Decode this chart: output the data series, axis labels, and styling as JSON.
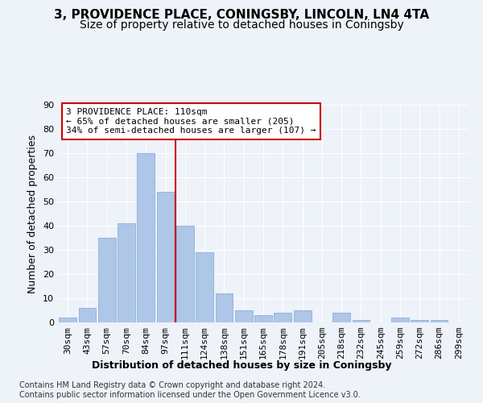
{
  "title1": "3, PROVIDENCE PLACE, CONINGSBY, LINCOLN, LN4 4TA",
  "title2": "Size of property relative to detached houses in Coningsby",
  "xlabel": "Distribution of detached houses by size in Coningsby",
  "ylabel": "Number of detached properties",
  "categories": [
    "30sqm",
    "43sqm",
    "57sqm",
    "70sqm",
    "84sqm",
    "97sqm",
    "111sqm",
    "124sqm",
    "138sqm",
    "151sqm",
    "165sqm",
    "178sqm",
    "191sqm",
    "205sqm",
    "218sqm",
    "232sqm",
    "245sqm",
    "259sqm",
    "272sqm",
    "286sqm",
    "299sqm"
  ],
  "bar_heights": [
    2,
    6,
    35,
    41,
    70,
    54,
    40,
    29,
    12,
    5,
    3,
    4,
    5,
    0,
    4,
    1,
    0,
    2,
    1,
    1,
    0
  ],
  "bar_color": "#aec6e8",
  "bar_edge_color": "#7aaad0",
  "background_color": "#eef2f9",
  "grid_color": "#ffffff",
  "vline_x_index": 6,
  "vline_color": "#cc0000",
  "annotation_text": "3 PROVIDENCE PLACE: 110sqm\n← 65% of detached houses are smaller (205)\n34% of semi-detached houses are larger (107) →",
  "annotation_box_color": "#ffffff",
  "annotation_box_edge_color": "#cc0000",
  "footer_text": "Contains HM Land Registry data © Crown copyright and database right 2024.\nContains public sector information licensed under the Open Government Licence v3.0.",
  "ylim": [
    0,
    90
  ],
  "yticks": [
    0,
    10,
    20,
    30,
    40,
    50,
    60,
    70,
    80,
    90
  ],
  "title1_fontsize": 11,
  "title2_fontsize": 10,
  "xlabel_fontsize": 9,
  "ylabel_fontsize": 9,
  "tick_fontsize": 8,
  "annotation_fontsize": 8,
  "footer_fontsize": 7
}
